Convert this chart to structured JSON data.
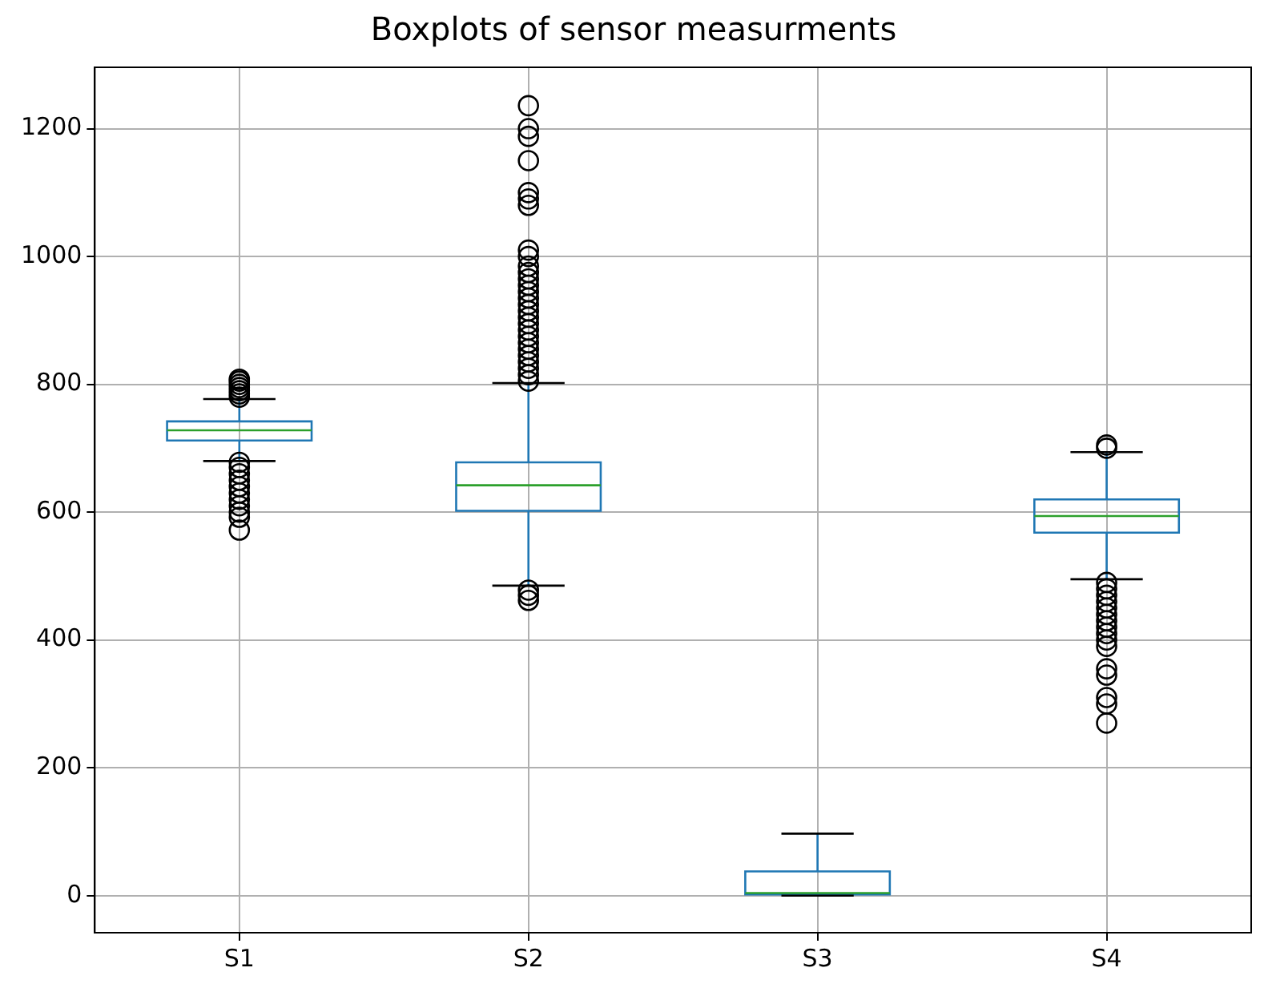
{
  "chart_data": {
    "type": "box",
    "title": "Boxplots of sensor measurments",
    "categories": [
      "S1",
      "S2",
      "S3",
      "S4"
    ],
    "boxes": [
      {
        "low": 680,
        "q1": 712,
        "median": 728,
        "q3": 742,
        "high": 777,
        "outliers": [
          780,
          785,
          790,
          795,
          800,
          805,
          808,
          678,
          670,
          660,
          650,
          640,
          630,
          620,
          610,
          600,
          592,
          572
        ]
      },
      {
        "low": 485,
        "q1": 602,
        "median": 642,
        "q3": 678,
        "high": 802,
        "outliers": [
          805,
          815,
          825,
          835,
          845,
          855,
          865,
          875,
          885,
          895,
          905,
          915,
          925,
          935,
          945,
          955,
          965,
          975,
          985,
          1000,
          1010,
          1080,
          1090,
          1100,
          1150,
          1188,
          1200,
          1236,
          478,
          470,
          462
        ]
      },
      {
        "low": 0,
        "q1": 2,
        "median": 4,
        "q3": 38,
        "high": 97
      },
      {
        "low": 495,
        "q1": 568,
        "median": 594,
        "q3": 620,
        "high": 694,
        "outliers": [
          700,
          705,
          490,
          480,
          470,
          460,
          450,
          440,
          430,
          420,
          410,
          400,
          390,
          355,
          345,
          310,
          300,
          270
        ]
      }
    ],
    "color": "#1f77b4",
    "ylim": [
      -58,
      1296
    ],
    "yticks": [
      0,
      200,
      400,
      600,
      800,
      1000,
      1200
    ],
    "grid": true
  }
}
